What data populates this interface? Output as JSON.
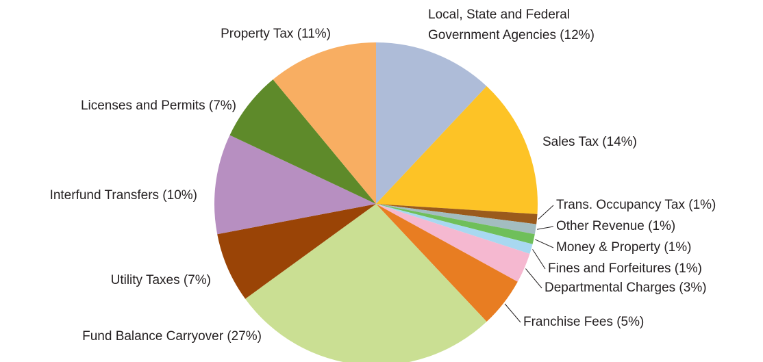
{
  "chart_data": {
    "type": "pie",
    "categories": [
      "Local, State and Federal Government Agencies (12%)",
      "Sales Tax (14%)",
      "Trans. Occupancy Tax (1%)",
      "Other Revenue (1%)",
      "Money & Property (1%)",
      "Fines and Forfeitures (1%)",
      "Departmental Charges (3%)",
      "Franchise Fees (5%)",
      "Fund Balance Carryover (27%)",
      "Utility Taxes (7%)",
      "Interfund Transfers (10%)",
      "Licenses and Permits (7%)",
      "Property Tax (11%)"
    ],
    "values": [
      12,
      14,
      1,
      1,
      1,
      1,
      3,
      5,
      27,
      7,
      10,
      7,
      11
    ],
    "colors": [
      "#aebcd8",
      "#fdc326",
      "#9a5a1c",
      "#a3bdc0",
      "#6fbf5a",
      "#a8d8f0",
      "#f5b8d0",
      "#e87d22",
      "#cadf93",
      "#9a4406",
      "#b78fc1",
      "#5e8a2a",
      "#f8ae62"
    ]
  }
}
